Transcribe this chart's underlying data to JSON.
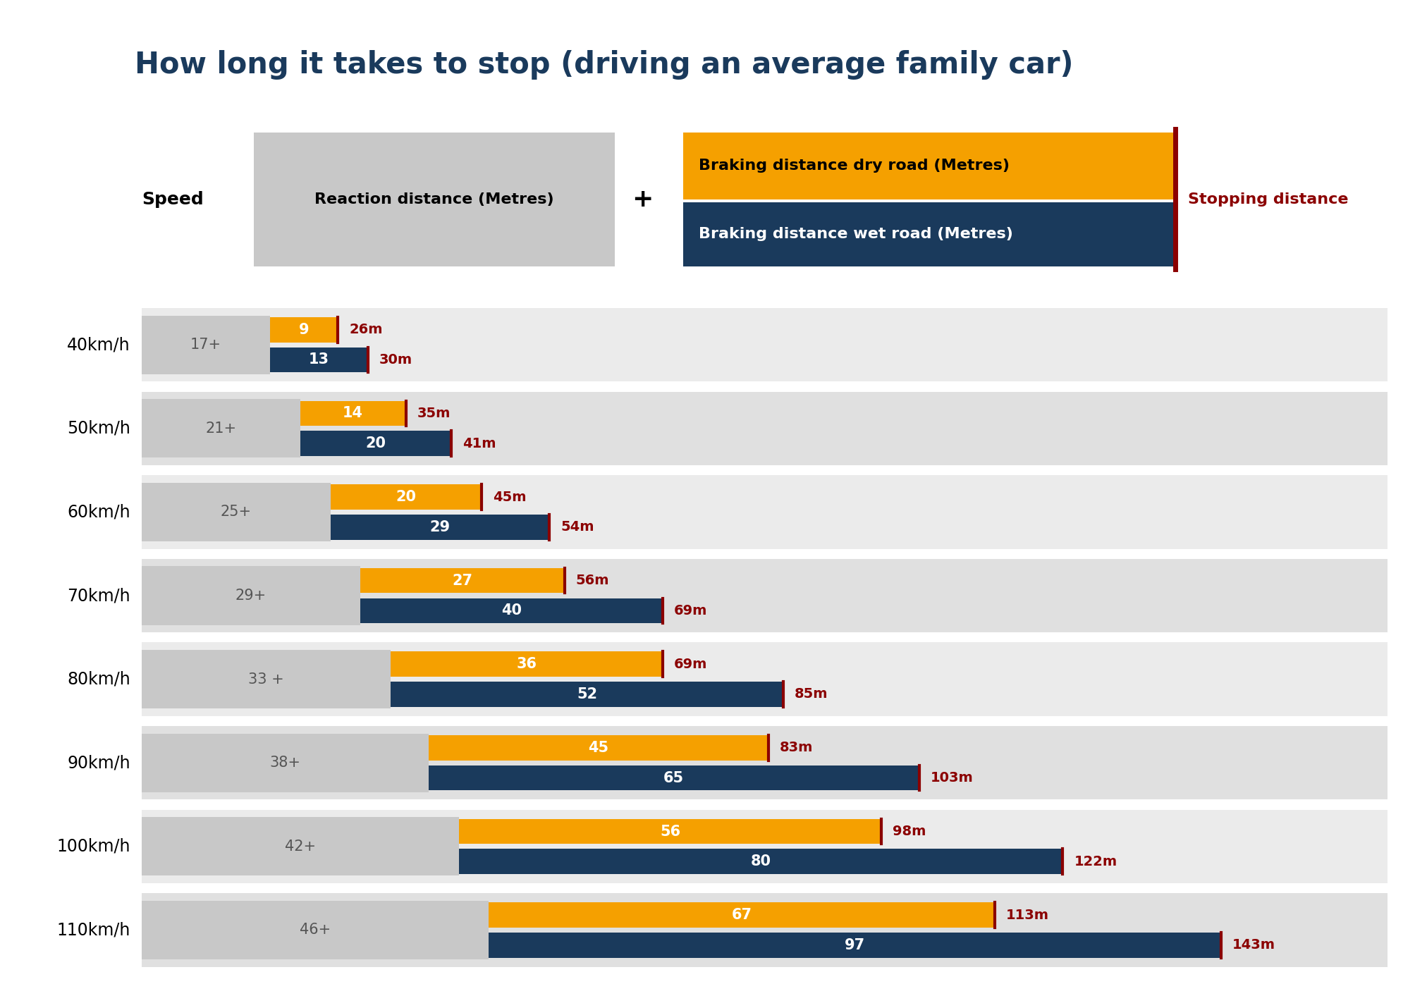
{
  "title": "How long it takes to stop (driving an average family car)",
  "title_color": "#1a3a5c",
  "title_fontsize": 30,
  "speeds": [
    "40km/h",
    "50km/h",
    "60km/h",
    "70km/h",
    "80km/h",
    "90km/h",
    "100km/h",
    "110km/h"
  ],
  "reaction_distances": [
    17,
    21,
    25,
    29,
    33,
    38,
    42,
    46
  ],
  "reaction_labels": [
    "17+",
    "21+",
    "25+",
    "29+",
    "33 +",
    "38+",
    "42+",
    "46+"
  ],
  "braking_dry": [
    9,
    14,
    20,
    27,
    36,
    45,
    56,
    67
  ],
  "braking_wet": [
    13,
    20,
    29,
    40,
    52,
    65,
    80,
    97
  ],
  "stopping_dry": [
    "26m",
    "35m",
    "45m",
    "56m",
    "69m",
    "83m",
    "98m",
    "113m"
  ],
  "stopping_wet": [
    "30m",
    "41m",
    "54m",
    "69m",
    "85m",
    "103m",
    "122m",
    "143m"
  ],
  "color_gray": "#c8c8c8",
  "color_orange": "#f5a000",
  "color_navy": "#1a3a5c",
  "color_red": "#8b0000",
  "color_white": "#ffffff",
  "color_bg": "#ffffff",
  "color_light_gray_bg": "#d8d8d8",
  "legend_dry_label": "Braking distance dry road (Metres)",
  "legend_wet_label": "Braking distance wet road (Metres)",
  "legend_reaction_label": "Reaction distance (Metres)",
  "legend_stopping_label": "Stopping distance",
  "speed_label": "Speed",
  "xmax": 155
}
